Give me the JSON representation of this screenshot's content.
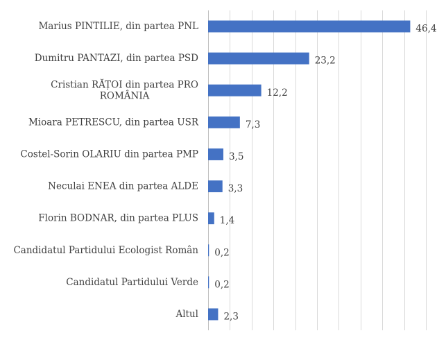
{
  "chart_data": {
    "type": "bar",
    "orientation": "horizontal",
    "categories": [
      [
        "Marius PINTILIE, din partea PNL"
      ],
      [
        "Dumitru PANTAZI, din partea PSD"
      ],
      [
        "Cristian RĂȚOI din partea PRO",
        "ROMÂNIA"
      ],
      [
        "Mioara PETRESCU, din partea USR"
      ],
      [
        "Costel-Sorin OLARIU din partea PMP"
      ],
      [
        "Neculai ENEA din partea ALDE"
      ],
      [
        "Florin BODNAR, din partea PLUS"
      ],
      [
        "Candidatul Partidului Ecologist Român"
      ],
      [
        "Candidatul Partidului Verde"
      ],
      [
        "Altul"
      ]
    ],
    "values": [
      46.4,
      23.2,
      12.2,
      7.3,
      3.5,
      3.3,
      1.4,
      0.2,
      0.2,
      2.3
    ],
    "value_labels": [
      "46,4",
      "23,2",
      "12,2",
      "7,3",
      "3,5",
      "3,3",
      "1,4",
      "0,2",
      "0,2",
      "2,3"
    ],
    "xlim": [
      0,
      50
    ],
    "grid_step": 5,
    "grid": true,
    "legend": false,
    "bar_color": "#4472c4"
  }
}
